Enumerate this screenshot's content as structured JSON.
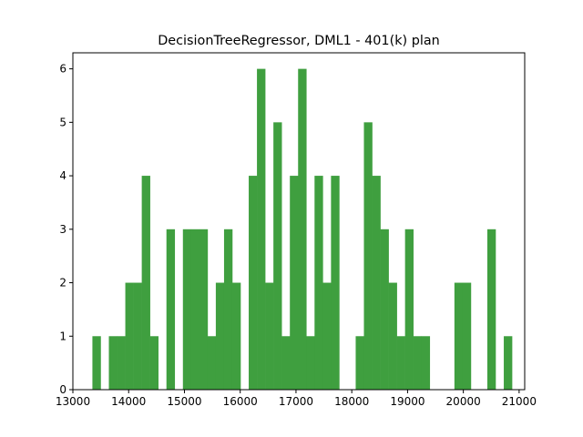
{
  "chart_data": {
    "type": "bar",
    "subtype": "histogram",
    "title": "DecisionTreeRegressor, DML1 - 401(k) plan",
    "xlabel": "",
    "ylabel": "",
    "xlim": [
      13000,
      21100
    ],
    "ylim": [
      0,
      6.3
    ],
    "x_ticks": [
      13000,
      14000,
      15000,
      16000,
      17000,
      18000,
      19000,
      20000,
      21000
    ],
    "y_ticks": [
      0,
      1,
      2,
      3,
      4,
      5,
      6
    ],
    "bin_start": 13350,
    "bin_width": 147.5,
    "values": [
      1,
      0,
      1,
      1,
      2,
      2,
      4,
      1,
      0,
      3,
      0,
      3,
      3,
      3,
      1,
      2,
      3,
      2,
      0,
      4,
      6,
      2,
      5,
      1,
      4,
      6,
      1,
      4,
      2,
      4,
      0,
      0,
      1,
      5,
      4,
      3,
      2,
      1,
      3,
      1,
      1,
      0,
      0,
      0,
      2,
      2,
      0,
      0,
      3,
      0,
      1
    ],
    "bar_color": "#3f9f3f",
    "grid": false,
    "legend": "none"
  }
}
